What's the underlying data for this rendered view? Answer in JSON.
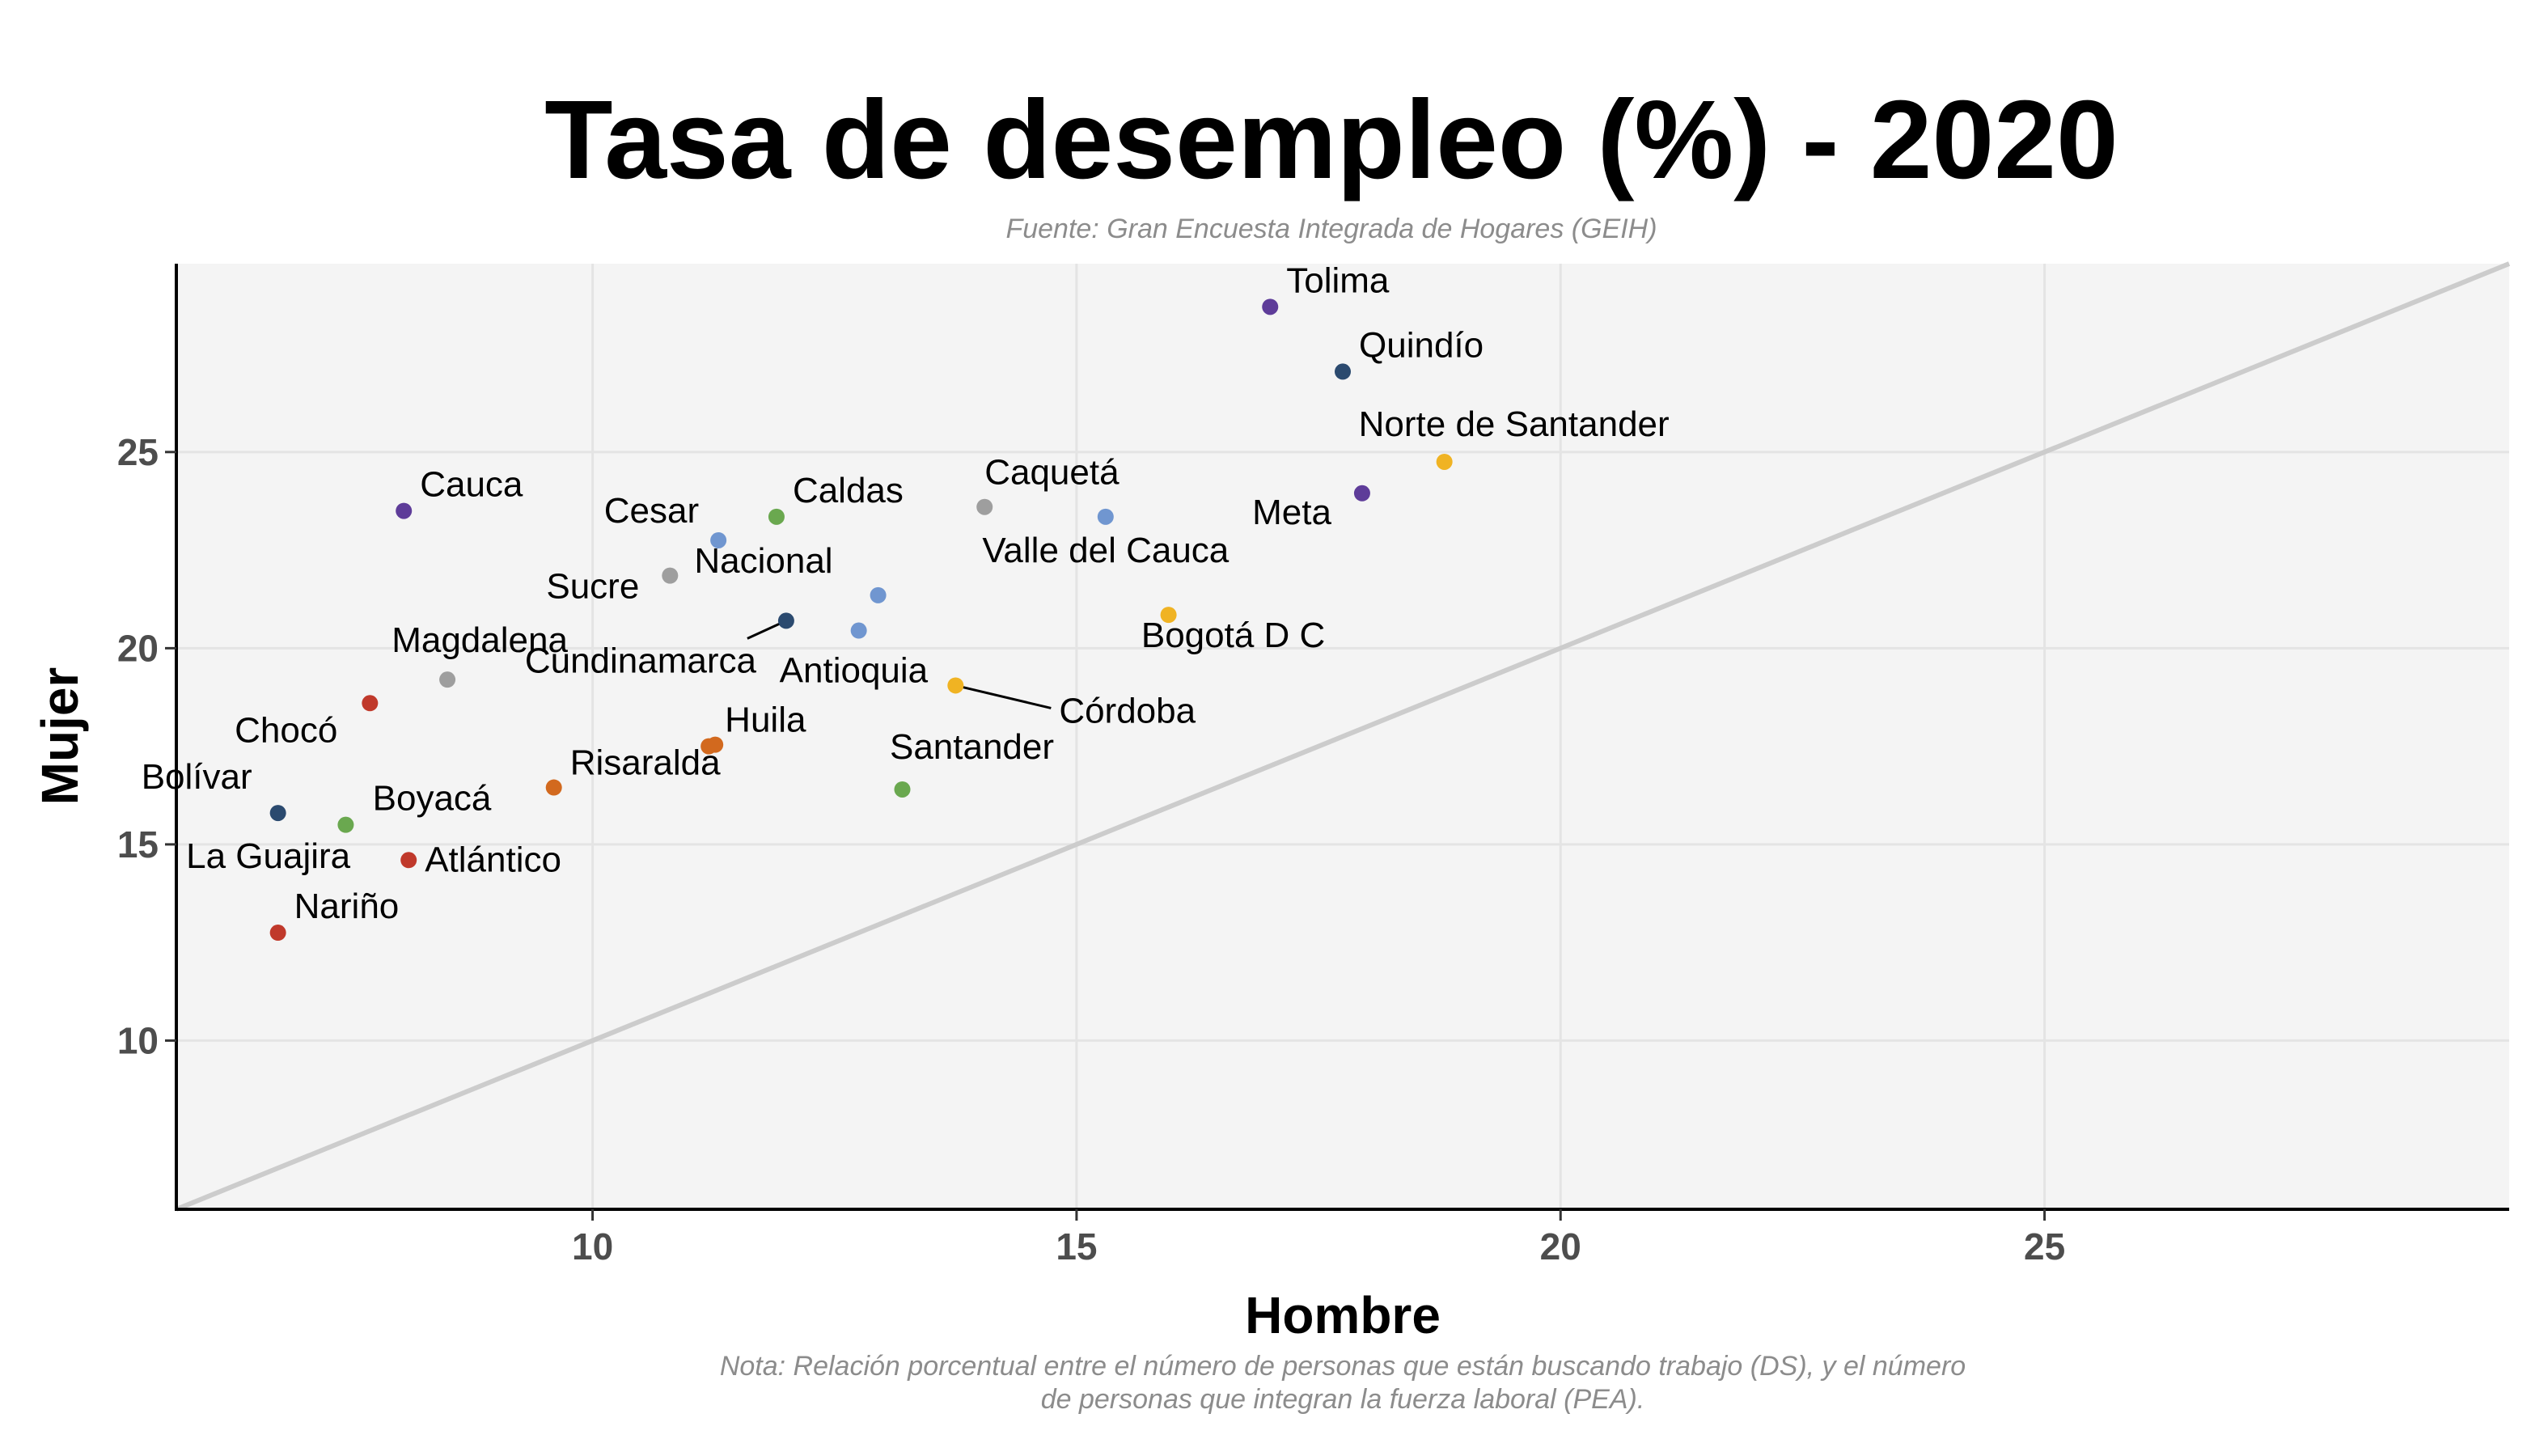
{
  "chart_data": {
    "type": "scatter",
    "title": "Tasa de desempleo (%) - 2020",
    "subtitle": "Fuente: Gran Encuesta Integrada de Hogares (GEIH)",
    "xlabel": "Hombre",
    "ylabel": "Mujer",
    "caption_lines": [
      "Nota: Relación porcentual entre el número de personas que están buscando trabajo (DS), y el número",
      "de personas que integran la fuerza laboral (PEA)."
    ],
    "xlim": [
      5.7,
      29.8
    ],
    "ylim": [
      5.7,
      29.8
    ],
    "xticks": [
      10,
      15,
      20,
      25
    ],
    "yticks": [
      10,
      15,
      20,
      25
    ],
    "grid": true,
    "reference_line": "y = x",
    "colors": {
      "panel_bg": "#f4f4f4",
      "grid": "#e4e4e4",
      "reference_line": "#cccccc",
      "axis": "#000000",
      "tick_text": "#4d4d4d",
      "subtitle_text": "#8c8c8c",
      "purple": "#5e3c99",
      "navy": "#2b4a6f",
      "gold": "#f0b323",
      "gray": "#9e9e9e",
      "blue": "#7096d0",
      "green": "#6aa84f",
      "red": "#c0392b",
      "orange": "#d2691e"
    },
    "points": [
      {
        "label": "Tolima",
        "x": 17.0,
        "y": 28.7,
        "color": "purple",
        "anchor": "ne"
      },
      {
        "label": "Quindío",
        "x": 17.75,
        "y": 27.05,
        "color": "navy",
        "anchor": "ne"
      },
      {
        "label": "Norte de Santander",
        "x": 18.8,
        "y": 24.75,
        "color": "gold",
        "anchor": "n"
      },
      {
        "label": "Meta",
        "x": 17.95,
        "y": 23.95,
        "color": "purple",
        "anchor": "sw"
      },
      {
        "label": "Cauca",
        "x": 8.05,
        "y": 23.5,
        "color": "purple",
        "anchor": "ne"
      },
      {
        "label": "Caldas",
        "x": 11.9,
        "y": 23.35,
        "color": "green",
        "anchor": "ne"
      },
      {
        "label": "Caquetá",
        "x": 14.05,
        "y": 23.6,
        "color": "gray",
        "anchor": "ne"
      },
      {
        "label": "Valle del Cauca",
        "x": 15.3,
        "y": 23.35,
        "color": "blue",
        "anchor": "s"
      },
      {
        "label": "Cesar",
        "x": 11.3,
        "y": 22.75,
        "color": "blue",
        "anchor": "nw"
      },
      {
        "label": "Sucre",
        "x": 10.8,
        "y": 21.85,
        "color": "gray",
        "anchor": "sw"
      },
      {
        "label": "Nacional",
        "x": 12.95,
        "y": 21.35,
        "color": "blue",
        "anchor": "nw"
      },
      {
        "label": "Cundinamarca",
        "x": 12.0,
        "y": 20.7,
        "color": "navy",
        "anchor": "sw-line"
      },
      {
        "label": "Antioquia",
        "x": 12.75,
        "y": 20.45,
        "color": "blue",
        "anchor": "se"
      },
      {
        "label": "Bogotá D C",
        "x": 15.95,
        "y": 20.85,
        "color": "gold",
        "anchor": "s"
      },
      {
        "label": "Magdalena",
        "x": 8.5,
        "y": 19.2,
        "color": "gray",
        "anchor": "n"
      },
      {
        "label": "Córdoba",
        "x": 13.75,
        "y": 19.05,
        "color": "gold",
        "anchor": "se-line"
      },
      {
        "label": "Chocó",
        "x": 7.7,
        "y": 18.6,
        "color": "red",
        "anchor": "sw"
      },
      {
        "label": "Huila",
        "x": 11.2,
        "y": 17.5,
        "color": "orange",
        "anchor": "ne"
      },
      {
        "label": "Risaralda",
        "x": 9.6,
        "y": 16.45,
        "color": "orange",
        "anchor": "ne"
      },
      {
        "label": "Santander",
        "x": 13.2,
        "y": 16.4,
        "color": "green",
        "anchor": "n"
      },
      {
        "label": "Bolívar",
        "x": 6.75,
        "y": 15.8,
        "color": "navy",
        "anchor": "nw"
      },
      {
        "label": "Boyacá",
        "x": 7.45,
        "y": 15.5,
        "color": "green",
        "anchor": "ne2"
      },
      {
        "label": "La Guajira",
        "x": 6.75,
        "y": 15.8,
        "color": "navy",
        "anchor": "sw2"
      },
      {
        "label": "Atlántico",
        "x": 8.1,
        "y": 14.6,
        "color": "red",
        "anchor": "e"
      },
      {
        "label": "Nariño",
        "x": 6.75,
        "y": 12.75,
        "color": "red",
        "anchor": "ne"
      }
    ]
  }
}
